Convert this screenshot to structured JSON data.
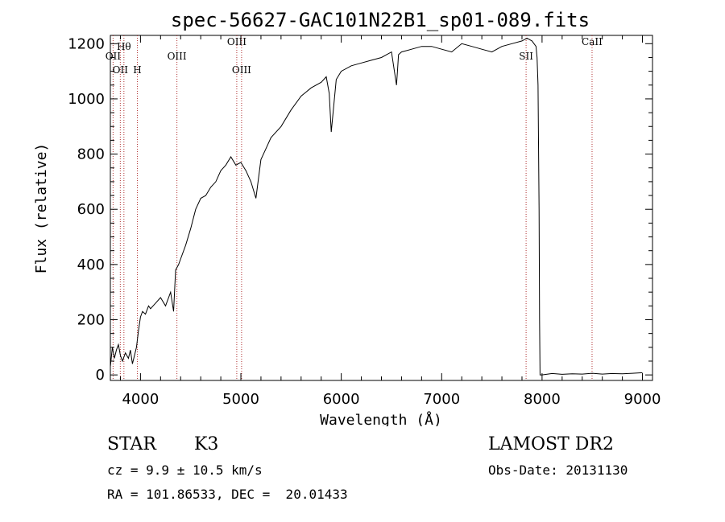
{
  "chart_data": {
    "type": "line",
    "title": "spec-56627-GAC101N22B1_sp01-089.fits",
    "xlabel": "Wavelength (Å)",
    "ylabel": "Flux (relative)",
    "xlim": [
      3700,
      9100
    ],
    "ylim": [
      -20,
      1230
    ],
    "xticks": [
      4000,
      5000,
      6000,
      7000,
      8000,
      9000
    ],
    "yticks": [
      0,
      200,
      400,
      600,
      800,
      1000,
      1200
    ],
    "grid": false,
    "series": [
      {
        "x": [
          3700,
          3720,
          3740,
          3760,
          3780,
          3800,
          3820,
          3850,
          3880,
          3900,
          3920,
          3940,
          3960,
          3980,
          4000,
          4020,
          4050,
          4080,
          4100,
          4150,
          4200,
          4250,
          4300,
          4330,
          4350,
          4380,
          4400,
          4450,
          4500,
          4550,
          4600,
          4650,
          4700,
          4750,
          4800,
          4850,
          4900,
          4950,
          5000,
          5050,
          5100,
          5150,
          5200,
          5250,
          5300,
          5400,
          5500,
          5600,
          5700,
          5800,
          5850,
          5880,
          5900,
          5950,
          6000,
          6100,
          6200,
          6300,
          6400,
          6500,
          6550,
          6560,
          6570,
          6600,
          6700,
          6800,
          6900,
          7000,
          7100,
          7200,
          7300,
          7400,
          7500,
          7600,
          7700,
          7800,
          7850,
          7900,
          7920,
          7940,
          7950,
          7960,
          7970,
          7975,
          7980,
          8000,
          8100,
          8200,
          8300,
          8400,
          8500,
          8600,
          8700,
          8800,
          8900,
          9000
        ],
        "y": [
          30,
          100,
          60,
          90,
          110,
          70,
          50,
          80,
          60,
          90,
          40,
          70,
          100,
          160,
          210,
          230,
          220,
          250,
          240,
          260,
          280,
          250,
          300,
          230,
          380,
          400,
          420,
          470,
          530,
          600,
          640,
          650,
          680,
          700,
          740,
          760,
          790,
          760,
          770,
          740,
          700,
          640,
          780,
          820,
          860,
          900,
          960,
          1010,
          1040,
          1060,
          1080,
          1020,
          880,
          1070,
          1100,
          1120,
          1130,
          1140,
          1150,
          1170,
          1050,
          1100,
          1160,
          1170,
          1180,
          1190,
          1190,
          1180,
          1170,
          1200,
          1190,
          1180,
          1170,
          1190,
          1200,
          1210,
          1220,
          1210,
          1200,
          1190,
          1150,
          1050,
          600,
          200,
          0,
          0,
          5,
          2,
          4,
          3,
          6,
          3,
          5,
          4,
          6,
          8
        ]
      }
    ],
    "lines": [
      {
        "wavelength": 3727,
        "label": "OII"
      },
      {
        "wavelength": 3799,
        "label": "OII"
      },
      {
        "wavelength": 3835,
        "label": "Hθ"
      },
      {
        "wavelength": 3969,
        "label": "H"
      },
      {
        "wavelength": 4363,
        "label": "OIII"
      },
      {
        "wavelength": 4959,
        "label": "OIII"
      },
      {
        "wavelength": 5007,
        "label": "OIII"
      },
      {
        "wavelength": 7841,
        "label": "SII"
      },
      {
        "wavelength": 8498,
        "label": "CaII"
      }
    ]
  },
  "info": {
    "object_type": "STAR",
    "subclass": "K3",
    "survey": "LAMOST DR2",
    "cz": "cz = 9.9 ± 10.5 km/s",
    "obs_date": "Obs-Date: 20131130",
    "coords": "RA = 101.86533, DEC =  20.01433"
  }
}
